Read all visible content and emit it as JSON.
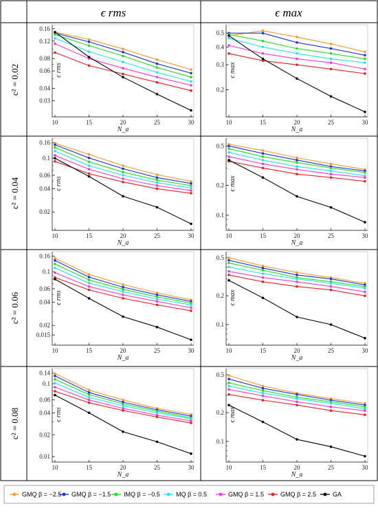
{
  "column_headers": [
    "ϵ rms",
    "ϵ max"
  ],
  "row_headers": [
    "c² = 0.02",
    "c² = 0.04",
    "c² = 0.06",
    "c² = 0.08"
  ],
  "legend": [
    {
      "label": "GMQ β = −2.5",
      "color": "#f79a2d"
    },
    {
      "label": "GMQ β = −1.5",
      "color": "#1f2fd6"
    },
    {
      "label": "IMQ β = −0.5",
      "color": "#22dd22"
    },
    {
      "label": "MQ β = 0.5",
      "color": "#22e5e5"
    },
    {
      "label": "GMQ β = 1.5",
      "color": "#f03ad8"
    },
    {
      "label": "GMQ β = 2.5",
      "color": "#e52020"
    },
    {
      "label": "GA",
      "color": "#000000"
    }
  ],
  "chart_data": [
    {
      "type": "line",
      "scale": "log",
      "title": "",
      "xlabel": "N_a",
      "ylabel": "ϵ rms",
      "x": [
        10,
        15,
        20,
        25,
        30
      ],
      "ylim": [
        0.022,
        0.17
      ],
      "yticks": [
        0.03,
        0.04,
        0.06,
        0.08,
        0.12,
        0.16
      ],
      "yticklabels": [
        "0.03",
        "0.04",
        "0.06",
        "0.08",
        "0.12",
        "0.16"
      ],
      "series": [
        {
          "name": "GMQ β = −2.5",
          "values": [
            0.148,
            0.125,
            0.1,
            0.078,
            0.062
          ]
        },
        {
          "name": "GMQ β = −1.5",
          "values": [
            0.145,
            0.118,
            0.093,
            0.071,
            0.057
          ]
        },
        {
          "name": "IMQ β = −0.5",
          "values": [
            0.14,
            0.108,
            0.085,
            0.065,
            0.052
          ]
        },
        {
          "name": "MQ β = 0.5",
          "values": [
            0.128,
            0.094,
            0.074,
            0.058,
            0.047
          ]
        },
        {
          "name": "GMQ β = 1.5",
          "values": [
            0.113,
            0.08,
            0.064,
            0.052,
            0.043
          ]
        },
        {
          "name": "GMQ β = 2.5",
          "values": [
            0.092,
            0.068,
            0.056,
            0.046,
            0.038
          ]
        },
        {
          "name": "GA",
          "values": [
            0.148,
            0.083,
            0.052,
            0.035,
            0.024
          ]
        }
      ]
    },
    {
      "type": "line",
      "scale": "log",
      "title": "",
      "xlabel": "N_a",
      "ylabel": "ϵ max",
      "x": [
        10,
        15,
        20,
        25,
        30
      ],
      "ylim": [
        0.135,
        0.56
      ],
      "yticks": [
        0.2,
        0.3,
        0.4,
        0.5
      ],
      "yticklabels": [
        "0.2",
        "0.3",
        "0.4",
        "0.5"
      ],
      "series": [
        {
          "name": "GMQ β = −2.5",
          "values": [
            0.48,
            0.52,
            0.47,
            0.42,
            0.37
          ]
        },
        {
          "name": "GMQ β = −1.5",
          "values": [
            0.5,
            0.5,
            0.43,
            0.39,
            0.35
          ]
        },
        {
          "name": "IMQ β = −0.5",
          "values": [
            0.49,
            0.44,
            0.39,
            0.36,
            0.33
          ]
        },
        {
          "name": "MQ β = 0.5",
          "values": [
            0.46,
            0.4,
            0.36,
            0.33,
            0.31
          ]
        },
        {
          "name": "GMQ β = 1.5",
          "values": [
            0.41,
            0.36,
            0.33,
            0.31,
            0.28
          ]
        },
        {
          "name": "GMQ β = 2.5",
          "values": [
            0.36,
            0.32,
            0.3,
            0.28,
            0.26
          ]
        },
        {
          "name": "GA",
          "values": [
            0.48,
            0.33,
            0.24,
            0.18,
            0.14
          ]
        }
      ]
    },
    {
      "type": "line",
      "scale": "log",
      "title": "",
      "xlabel": "N_a",
      "ylabel": "ϵ rms",
      "x": [
        10,
        15,
        20,
        25,
        30
      ],
      "ylim": [
        0.0125,
        0.175
      ],
      "yticks": [
        0.02,
        0.04,
        0.06,
        0.1,
        0.16
      ],
      "yticklabels": [
        "0.02",
        "0.04",
        "0.06",
        "0.1",
        "0.16"
      ],
      "series": [
        {
          "name": "GMQ β = −2.5",
          "values": [
            0.157,
            0.112,
            0.08,
            0.061,
            0.05
          ]
        },
        {
          "name": "GMQ β = −1.5",
          "values": [
            0.15,
            0.101,
            0.073,
            0.056,
            0.047
          ]
        },
        {
          "name": "IMQ β = −0.5",
          "values": [
            0.138,
            0.09,
            0.066,
            0.052,
            0.044
          ]
        },
        {
          "name": "MQ β = 0.5",
          "values": [
            0.124,
            0.08,
            0.06,
            0.048,
            0.041
          ]
        },
        {
          "name": "GMQ β = 1.5",
          "values": [
            0.109,
            0.072,
            0.054,
            0.044,
            0.038
          ]
        },
        {
          "name": "GMQ β = 2.5",
          "values": [
            0.091,
            0.063,
            0.049,
            0.04,
            0.035
          ]
        },
        {
          "name": "GA",
          "values": [
            0.1,
            0.058,
            0.032,
            0.023,
            0.014
          ]
        }
      ]
    },
    {
      "type": "line",
      "scale": "log",
      "title": "",
      "xlabel": "N_a",
      "ylabel": "ϵ max",
      "x": [
        10,
        15,
        20,
        25,
        30
      ],
      "ylim": [
        0.075,
        0.58
      ],
      "yticks": [
        0.1,
        0.2,
        0.5
      ],
      "yticklabels": [
        "0.1",
        "0.2",
        "0.5"
      ],
      "series": [
        {
          "name": "GMQ β = −2.5",
          "values": [
            0.52,
            0.45,
            0.38,
            0.33,
            0.29
          ]
        },
        {
          "name": "GMQ β = −1.5",
          "values": [
            0.5,
            0.42,
            0.36,
            0.31,
            0.28
          ]
        },
        {
          "name": "IMQ β = −0.5",
          "values": [
            0.47,
            0.39,
            0.34,
            0.3,
            0.27
          ]
        },
        {
          "name": "MQ β = 0.5",
          "values": [
            0.43,
            0.36,
            0.31,
            0.28,
            0.25
          ]
        },
        {
          "name": "GMQ β = 1.5",
          "values": [
            0.39,
            0.33,
            0.29,
            0.26,
            0.24
          ]
        },
        {
          "name": "GMQ β = 2.5",
          "values": [
            0.35,
            0.3,
            0.26,
            0.24,
            0.22
          ]
        },
        {
          "name": "GA",
          "values": [
            0.36,
            0.24,
            0.155,
            0.12,
            0.085
          ]
        }
      ]
    },
    {
      "type": "line",
      "scale": "log",
      "title": "",
      "xlabel": "N_a",
      "ylabel": "ϵ rms",
      "x": [
        10,
        15,
        20,
        25,
        30
      ],
      "ylim": [
        0.012,
        0.175
      ],
      "yticks": [
        0.015,
        0.02,
        0.04,
        0.06,
        0.1,
        0.16
      ],
      "yticklabels": [
        "0.015",
        "0.02",
        "0.04",
        "0.06",
        "0.1",
        "0.16"
      ],
      "series": [
        {
          "name": "GMQ β = −2.5",
          "values": [
            0.15,
            0.092,
            0.068,
            0.053,
            0.043
          ]
        },
        {
          "name": "GMQ β = −1.5",
          "values": [
            0.14,
            0.085,
            0.063,
            0.05,
            0.041
          ]
        },
        {
          "name": "IMQ β = −0.5",
          "values": [
            0.126,
            0.078,
            0.059,
            0.047,
            0.039
          ]
        },
        {
          "name": "MQ β = 0.5",
          "values": [
            0.112,
            0.071,
            0.055,
            0.044,
            0.037
          ]
        },
        {
          "name": "GMQ β = 1.5",
          "values": [
            0.097,
            0.064,
            0.05,
            0.041,
            0.034
          ]
        },
        {
          "name": "GMQ β = 2.5",
          "values": [
            0.084,
            0.058,
            0.045,
            0.037,
            0.031
          ]
        },
        {
          "name": "GA",
          "values": [
            0.08,
            0.045,
            0.026,
            0.019,
            0.013
          ]
        }
      ]
    },
    {
      "type": "line",
      "scale": "log",
      "title": "",
      "xlabel": "N_a",
      "ylabel": "ϵ max",
      "x": [
        10,
        15,
        20,
        25,
        30
      ],
      "ylim": [
        0.065,
        0.56
      ],
      "yticks": [
        0.1,
        0.2,
        0.5
      ],
      "yticklabels": [
        "0.1",
        "0.2",
        "0.5"
      ],
      "series": [
        {
          "name": "GMQ β = −2.5",
          "values": [
            0.5,
            0.41,
            0.35,
            0.31,
            0.27
          ]
        },
        {
          "name": "GMQ β = −1.5",
          "values": [
            0.47,
            0.39,
            0.33,
            0.3,
            0.26
          ]
        },
        {
          "name": "IMQ β = −0.5",
          "values": [
            0.44,
            0.37,
            0.31,
            0.28,
            0.25
          ]
        },
        {
          "name": "MQ β = 0.5",
          "values": [
            0.4,
            0.34,
            0.3,
            0.27,
            0.24
          ]
        },
        {
          "name": "GMQ β = 1.5",
          "values": [
            0.36,
            0.31,
            0.28,
            0.25,
            0.22
          ]
        },
        {
          "name": "GMQ β = 2.5",
          "values": [
            0.33,
            0.28,
            0.25,
            0.23,
            0.2
          ]
        },
        {
          "name": "GA",
          "values": [
            0.29,
            0.19,
            0.12,
            0.1,
            0.072
          ]
        }
      ]
    },
    {
      "type": "line",
      "scale": "log",
      "title": "",
      "xlabel": "N_a",
      "ylabel": "ϵ rms",
      "x": [
        10,
        15,
        20,
        25,
        30
      ],
      "ylim": [
        0.0092,
        0.155
      ],
      "yticks": [
        0.01,
        0.02,
        0.04,
        0.06,
        0.1,
        0.14
      ],
      "yticklabels": [
        "0.01",
        "0.02",
        "0.04",
        "0.06",
        "0.1",
        "0.14"
      ],
      "series": [
        {
          "name": "GMQ β = −2.5",
          "values": [
            0.138,
            0.082,
            0.06,
            0.046,
            0.038
          ]
        },
        {
          "name": "GMQ β = −1.5",
          "values": [
            0.128,
            0.076,
            0.056,
            0.044,
            0.036
          ]
        },
        {
          "name": "IMQ β = −0.5",
          "values": [
            0.115,
            0.071,
            0.053,
            0.042,
            0.034
          ]
        },
        {
          "name": "MQ β = 0.5",
          "values": [
            0.102,
            0.065,
            0.05,
            0.04,
            0.033
          ]
        },
        {
          "name": "GMQ β = 1.5",
          "values": [
            0.09,
            0.06,
            0.046,
            0.037,
            0.031
          ]
        },
        {
          "name": "GMQ β = 2.5",
          "values": [
            0.079,
            0.055,
            0.043,
            0.035,
            0.029
          ]
        },
        {
          "name": "GA",
          "values": [
            0.07,
            0.04,
            0.022,
            0.016,
            0.011
          ]
        }
      ]
    },
    {
      "type": "line",
      "scale": "log",
      "title": "",
      "xlabel": "N_a",
      "ylabel": "ϵ max",
      "x": [
        10,
        15,
        20,
        25,
        30
      ],
      "ylim": [
        0.065,
        0.56
      ],
      "yticks": [
        0.1,
        0.2,
        0.5
      ],
      "yticklabels": [
        "0.1",
        "0.2",
        "0.5"
      ],
      "series": [
        {
          "name": "GMQ β = −2.5",
          "values": [
            0.49,
            0.38,
            0.32,
            0.28,
            0.25
          ]
        },
        {
          "name": "GMQ β = −1.5",
          "values": [
            0.45,
            0.36,
            0.31,
            0.27,
            0.24
          ]
        },
        {
          "name": "IMQ β = −0.5",
          "values": [
            0.41,
            0.34,
            0.29,
            0.26,
            0.23
          ]
        },
        {
          "name": "MQ β = 0.5",
          "values": [
            0.38,
            0.32,
            0.28,
            0.25,
            0.22
          ]
        },
        {
          "name": "GMQ β = 1.5",
          "values": [
            0.35,
            0.3,
            0.26,
            0.23,
            0.21
          ]
        },
        {
          "name": "GMQ β = 2.5",
          "values": [
            0.31,
            0.27,
            0.24,
            0.21,
            0.19
          ]
        },
        {
          "name": "GA",
          "values": [
            0.24,
            0.16,
            0.105,
            0.088,
            0.07
          ]
        }
      ]
    }
  ]
}
